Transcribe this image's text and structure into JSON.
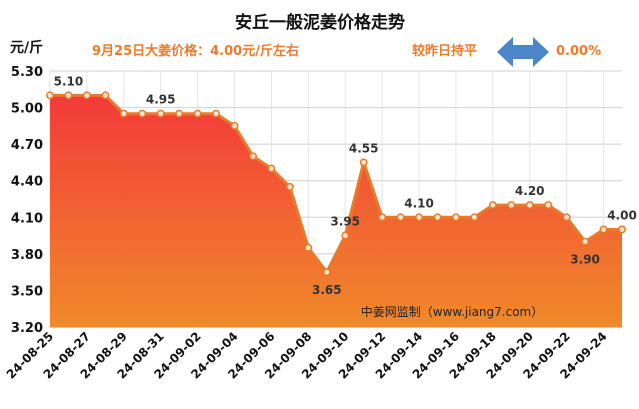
{
  "title": "安丘一般泥姜价格走势",
  "unit_label": "元/斤",
  "subtitle": "9月25日大姜价格：4.00元/斤左右",
  "change_label": "较昨日持平",
  "change_value": "0.00%",
  "watermark": "中姜网监制（www.jiang7.com）",
  "colors": {
    "title": "#111111",
    "accent": "#ee7a2a",
    "arrow": "#4a86c8",
    "line": "#e87a2a",
    "area_top": "#f23a3a",
    "area_bottom": "#f08a2a",
    "grid": "#cfcfcf"
  },
  "chart_data": {
    "type": "area",
    "ylim": [
      3.2,
      5.3
    ],
    "yticks": [
      "3.20",
      "3.50",
      "3.80",
      "4.10",
      "4.40",
      "4.70",
      "5.00",
      "5.30"
    ],
    "x": [
      "24-08-25",
      "24-08-26",
      "24-08-27",
      "24-08-28",
      "24-08-29",
      "24-08-30",
      "24-08-31",
      "24-09-01",
      "24-09-02",
      "24-09-03",
      "24-09-04",
      "24-09-05",
      "24-09-06",
      "24-09-07",
      "24-09-08",
      "24-09-09",
      "24-09-10",
      "24-09-11",
      "24-09-12",
      "24-09-13",
      "24-09-14",
      "24-09-15",
      "24-09-16",
      "24-09-17",
      "24-09-18",
      "24-09-19",
      "24-09-20",
      "24-09-21",
      "24-09-22",
      "24-09-23",
      "24-09-24",
      "24-09-25"
    ],
    "xtick_labels": [
      "24-08-25",
      "24-08-27",
      "24-08-29",
      "24-08-31",
      "24-09-02",
      "24-09-04",
      "24-09-06",
      "24-09-08",
      "24-09-10",
      "24-09-12",
      "24-09-14",
      "24-09-16",
      "24-09-18",
      "24-09-20",
      "24-09-22",
      "24-09-24"
    ],
    "values": [
      5.1,
      5.1,
      5.1,
      5.1,
      4.95,
      4.95,
      4.95,
      4.95,
      4.95,
      4.95,
      4.85,
      4.6,
      4.5,
      4.35,
      3.85,
      3.65,
      3.95,
      4.55,
      4.1,
      4.1,
      4.1,
      4.1,
      4.1,
      4.1,
      4.2,
      4.2,
      4.2,
      4.2,
      4.1,
      3.9,
      4.0,
      4.0
    ],
    "data_labels": [
      {
        "index": 1,
        "text": "5.10",
        "pos": "above"
      },
      {
        "index": 6,
        "text": "4.95",
        "pos": "above"
      },
      {
        "index": 15,
        "text": "3.65",
        "pos": "below"
      },
      {
        "index": 16,
        "text": "3.95",
        "pos": "above"
      },
      {
        "index": 17,
        "text": "4.55",
        "pos": "above"
      },
      {
        "index": 20,
        "text": "4.10",
        "pos": "above"
      },
      {
        "index": 26,
        "text": "4.20",
        "pos": "above"
      },
      {
        "index": 29,
        "text": "3.90",
        "pos": "below"
      },
      {
        "index": 31,
        "text": "4.00",
        "pos": "above"
      }
    ],
    "grid": true
  }
}
